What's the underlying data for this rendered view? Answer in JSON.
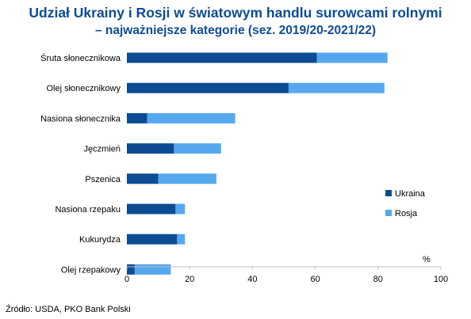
{
  "title": "Udział Ukrainy i Rosji w światowym handlu surowcami rolnymi",
  "subtitle": "– najważniejsze kategorie (sez. 2019/20-2021/22)",
  "source": "Źródło: USDA, PKO Bank Polski",
  "colors": {
    "ukraina": "#0d4c92",
    "rosja": "#56a8ee",
    "axis": "#bfbfbf"
  },
  "chart_data": {
    "type": "bar",
    "orientation": "horizontal",
    "stacked": true,
    "categories": [
      "Śruta słonecznikowa",
      "Olej słonecznikowy",
      "Nasiona słonecznika",
      "Jęczmień",
      "Pszenica",
      "Nasiona rzepaku",
      "Kukurydza",
      "Olej rzepakowy"
    ],
    "series": [
      {
        "name": "Ukraina",
        "values": [
          60.5,
          51.5,
          6.5,
          15,
          10,
          15.5,
          16,
          2.5
        ]
      },
      {
        "name": "Rosja",
        "values": [
          22.5,
          30.5,
          28,
          15,
          18.5,
          3,
          2.5,
          11.5
        ]
      }
    ],
    "xlim": [
      0,
      100
    ],
    "xticks": [
      0,
      20,
      40,
      60,
      80,
      100
    ],
    "unit": "%",
    "legend_position": "right"
  }
}
